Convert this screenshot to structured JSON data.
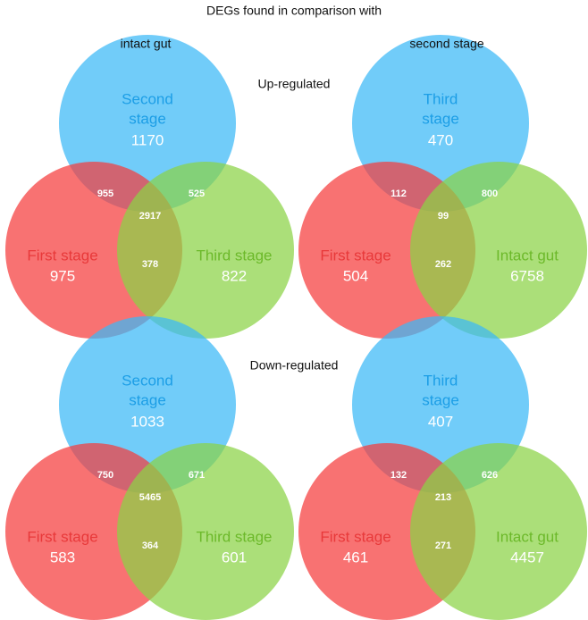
{
  "title": "DEGs found in comparison with",
  "column_headers": [
    "intact gut",
    "second stage"
  ],
  "row_headers": [
    "Up-regulated",
    "Down-regulated"
  ],
  "venns": [
    {
      "top": {
        "label_lines": [
          "Second",
          "stage"
        ],
        "count": 1170
      },
      "left": {
        "label": "First stage",
        "count": 975
      },
      "right": {
        "label": "Third stage",
        "count": 822
      },
      "top_left": 955,
      "top_right": 525,
      "left_right": 378,
      "all": 2917
    },
    {
      "top": {
        "label_lines": [
          "Third",
          "stage"
        ],
        "count": 470
      },
      "left": {
        "label": "First stage",
        "count": 504
      },
      "right": {
        "label": "Intact gut",
        "count": 6758
      },
      "top_left": 112,
      "top_right": 800,
      "left_right": 262,
      "all": 99
    },
    {
      "top": {
        "label_lines": [
          "Second",
          "stage"
        ],
        "count": 1033
      },
      "left": {
        "label": "First stage",
        "count": 583
      },
      "right": {
        "label": "Third stage",
        "count": 601
      },
      "top_left": 750,
      "top_right": 671,
      "left_right": 364,
      "all": 5465
    },
    {
      "top": {
        "label_lines": [
          "Third",
          "stage"
        ],
        "count": 407
      },
      "left": {
        "label": "First stage",
        "count": 461
      },
      "right": {
        "label": "Intact gut",
        "count": 4457
      },
      "top_left": 132,
      "top_right": 626,
      "left_right": 271,
      "all": 213
    }
  ]
}
